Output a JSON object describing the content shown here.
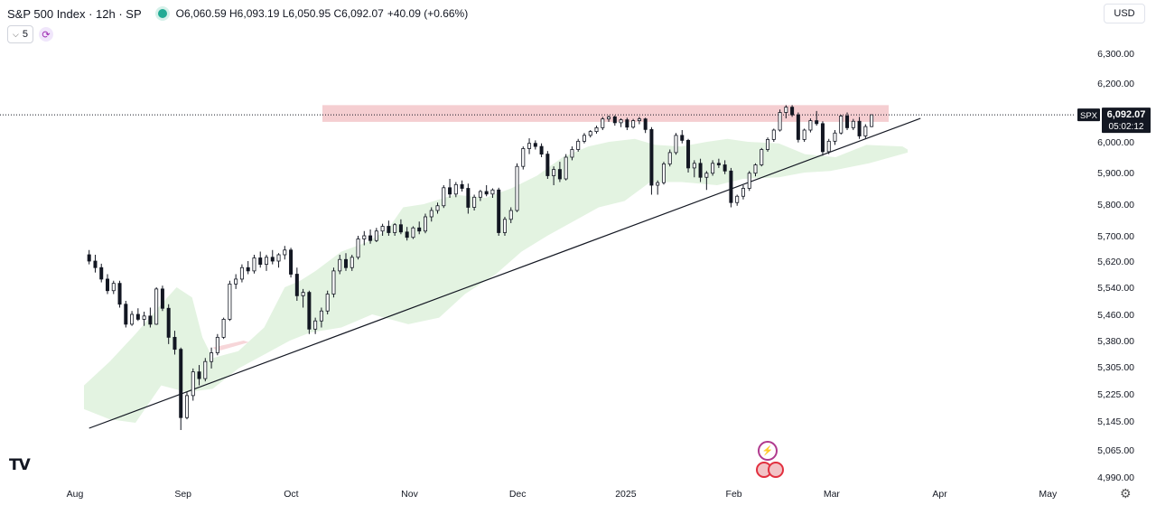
{
  "header": {
    "symbol_title": "S&P 500 Index · 12h · SP",
    "ohlc": "O6,060.59 H6,093.19 L6,050.95 C6,092.07",
    "change": "+40.09 (+0.66%)",
    "interval_value": "5",
    "currency": "USD"
  },
  "price_tag": {
    "ticker": "SPX",
    "price": "6,092.07",
    "countdown": "05:02:12"
  },
  "colors": {
    "up": "#131722",
    "down": "#131722",
    "cloud": "#e3f3e1",
    "resistance": "#f3c5c9",
    "trendline": "#131722",
    "last_bg": "#131722"
  },
  "chart_data": {
    "type": "candlestick",
    "y_axis": {
      "ticks": [
        {
          "v": 6300,
          "label": "6,300.00"
        },
        {
          "v": 6200,
          "label": "6,200.00"
        },
        {
          "v": 6000,
          "label": "6,000.00"
        },
        {
          "v": 5900,
          "label": "5,900.00"
        },
        {
          "v": 5800,
          "label": "5,800.00"
        },
        {
          "v": 5700,
          "label": "5,700.00"
        },
        {
          "v": 5620,
          "label": "5,620.00"
        },
        {
          "v": 5540,
          "label": "5,540.00"
        },
        {
          "v": 5460,
          "label": "5,460.00"
        },
        {
          "v": 5380,
          "label": "5,380.00"
        },
        {
          "v": 5305,
          "label": "5,305.00"
        },
        {
          "v": 5225,
          "label": "5,225.00"
        },
        {
          "v": 5145,
          "label": "5,145.00"
        },
        {
          "v": 5065,
          "label": "5,065.00"
        },
        {
          "v": 4990,
          "label": "4,990.00"
        }
      ]
    },
    "x_axis": {
      "ticks": [
        {
          "i": 0,
          "label": "Aug"
        },
        {
          "i": 42,
          "label": "Sep"
        },
        {
          "i": 84,
          "label": "Oct"
        },
        {
          "i": 130,
          "label": "Nov"
        },
        {
          "i": 172,
          "label": "Dec"
        },
        {
          "i": 214,
          "label": "2025"
        },
        {
          "i": 256,
          "label": "Feb"
        },
        {
          "i": 294,
          "label": "Mar"
        },
        {
          "i": 336,
          "label": "Apr"
        },
        {
          "i": 378,
          "label": "May"
        }
      ]
    },
    "last_price": 6092.07,
    "resistance_zone": {
      "from": 6068,
      "to": 6125
    },
    "trendline": {
      "from": [
        2,
        5125
      ],
      "to": [
        325,
        6080
      ]
    },
    "ohlc_note": "approximate per-bar estimates, 12h bars",
    "candles": [
      [
        5640,
        5655,
        5610,
        5620
      ],
      [
        5620,
        5640,
        5585,
        5600
      ],
      [
        5600,
        5612,
        5555,
        5565
      ],
      [
        5565,
        5580,
        5520,
        5530
      ],
      [
        5530,
        5560,
        5520,
        5552
      ],
      [
        5552,
        5560,
        5480,
        5490
      ],
      [
        5490,
        5500,
        5420,
        5430
      ],
      [
        5430,
        5470,
        5425,
        5460
      ],
      [
        5460,
        5478,
        5440,
        5445
      ],
      [
        5445,
        5468,
        5425,
        5455
      ],
      [
        5455,
        5480,
        5420,
        5430
      ],
      [
        5430,
        5540,
        5428,
        5535
      ],
      [
        5535,
        5545,
        5470,
        5478
      ],
      [
        5478,
        5490,
        5370,
        5390
      ],
      [
        5390,
        5410,
        5340,
        5355
      ],
      [
        5355,
        5360,
        5120,
        5155
      ],
      [
        5155,
        5230,
        5150,
        5220
      ],
      [
        5220,
        5300,
        5205,
        5290
      ],
      [
        5290,
        5310,
        5250,
        5270
      ],
      [
        5270,
        5330,
        5262,
        5320
      ],
      [
        5320,
        5360,
        5300,
        5345
      ],
      [
        5345,
        5400,
        5338,
        5390
      ],
      [
        5390,
        5450,
        5385,
        5445
      ],
      [
        5445,
        5560,
        5440,
        5550
      ],
      [
        5550,
        5580,
        5535,
        5565
      ],
      [
        5565,
        5610,
        5555,
        5600
      ],
      [
        5600,
        5620,
        5580,
        5590
      ],
      [
        5590,
        5640,
        5582,
        5630
      ],
      [
        5630,
        5650,
        5600,
        5610
      ],
      [
        5610,
        5640,
        5590,
        5632
      ],
      [
        5632,
        5655,
        5610,
        5620
      ],
      [
        5620,
        5645,
        5600,
        5640
      ],
      [
        5640,
        5668,
        5625,
        5655
      ],
      [
        5655,
        5662,
        5570,
        5580
      ],
      [
        5580,
        5600,
        5500,
        5515
      ],
      [
        5515,
        5535,
        5480,
        5525
      ],
      [
        5525,
        5530,
        5400,
        5415
      ],
      [
        5415,
        5450,
        5400,
        5440
      ],
      [
        5440,
        5480,
        5420,
        5470
      ],
      [
        5470,
        5530,
        5460,
        5520
      ],
      [
        5520,
        5600,
        5510,
        5590
      ],
      [
        5590,
        5640,
        5580,
        5625
      ],
      [
        5625,
        5645,
        5590,
        5600
      ],
      [
        5600,
        5640,
        5590,
        5632
      ],
      [
        5632,
        5700,
        5625,
        5690
      ],
      [
        5690,
        5715,
        5670,
        5700
      ],
      [
        5700,
        5720,
        5675,
        5685
      ],
      [
        5685,
        5725,
        5680,
        5715
      ],
      [
        5715,
        5738,
        5700,
        5730
      ],
      [
        5730,
        5748,
        5700,
        5710
      ],
      [
        5710,
        5740,
        5700,
        5735
      ],
      [
        5735,
        5752,
        5705,
        5712
      ],
      [
        5712,
        5728,
        5685,
        5695
      ],
      [
        5695,
        5730,
        5690,
        5725
      ],
      [
        5725,
        5745,
        5705,
        5715
      ],
      [
        5715,
        5770,
        5708,
        5760
      ],
      [
        5760,
        5790,
        5745,
        5780
      ],
      [
        5780,
        5805,
        5770,
        5795
      ],
      [
        5795,
        5860,
        5788,
        5852
      ],
      [
        5852,
        5880,
        5820,
        5832
      ],
      [
        5832,
        5870,
        5822,
        5862
      ],
      [
        5862,
        5875,
        5840,
        5850
      ],
      [
        5850,
        5865,
        5770,
        5790
      ],
      [
        5790,
        5830,
        5780,
        5822
      ],
      [
        5822,
        5845,
        5810,
        5840
      ],
      [
        5840,
        5860,
        5825,
        5832
      ],
      [
        5832,
        5850,
        5820,
        5845
      ],
      [
        5845,
        5852,
        5700,
        5710
      ],
      [
        5710,
        5760,
        5700,
        5752
      ],
      [
        5752,
        5790,
        5740,
        5780
      ],
      [
        5780,
        5930,
        5775,
        5920
      ],
      [
        5920,
        5985,
        5910,
        5978
      ],
      [
        5978,
        6012,
        5960,
        5995
      ],
      [
        5995,
        6005,
        5975,
        5985
      ],
      [
        5985,
        5995,
        5950,
        5960
      ],
      [
        5960,
        5970,
        5880,
        5890
      ],
      [
        5890,
        5920,
        5860,
        5910
      ],
      [
        5910,
        5935,
        5870,
        5880
      ],
      [
        5880,
        5960,
        5875,
        5950
      ],
      [
        5950,
        5985,
        5940,
        5975
      ],
      [
        5975,
        6010,
        5968,
        6002
      ],
      [
        6002,
        6030,
        5995,
        6022
      ],
      [
        6022,
        6040,
        6015,
        6035
      ],
      [
        6035,
        6055,
        6028,
        6048
      ],
      [
        6048,
        6085,
        6040,
        6078
      ],
      [
        6078,
        6090,
        6068,
        6085
      ],
      [
        6085,
        6090,
        6055,
        6065
      ],
      [
        6065,
        6080,
        6050,
        6075
      ],
      [
        6075,
        6082,
        6040,
        6050
      ],
      [
        6050,
        6078,
        6045,
        6072
      ],
      [
        6072,
        6085,
        6060,
        6078
      ],
      [
        6078,
        6082,
        6030,
        6042
      ],
      [
        6042,
        6050,
        5830,
        5860
      ],
      [
        5860,
        5875,
        5830,
        5868
      ],
      [
        5868,
        5935,
        5862,
        5928
      ],
      [
        5928,
        5975,
        5920,
        5965
      ],
      [
        5965,
        6030,
        5958,
        6022
      ],
      [
        6022,
        6040,
        5995,
        6005
      ],
      [
        6005,
        6010,
        5900,
        5915
      ],
      [
        5915,
        5940,
        5885,
        5930
      ],
      [
        5930,
        5945,
        5870,
        5885
      ],
      [
        5885,
        5905,
        5845,
        5898
      ],
      [
        5898,
        5940,
        5890,
        5930
      ],
      [
        5930,
        5945,
        5915,
        5925
      ],
      [
        5925,
        5940,
        5895,
        5905
      ],
      [
        5905,
        5915,
        5790,
        5805
      ],
      [
        5805,
        5830,
        5795,
        5825
      ],
      [
        5825,
        5860,
        5815,
        5850
      ],
      [
        5850,
        5905,
        5842,
        5898
      ],
      [
        5898,
        5930,
        5888,
        5925
      ],
      [
        5925,
        5980,
        5920,
        5975
      ],
      [
        5975,
        6015,
        5968,
        6008
      ],
      [
        6008,
        6045,
        6000,
        6040
      ],
      [
        6040,
        6110,
        6035,
        6100
      ],
      [
        6100,
        6125,
        6080,
        6118
      ],
      [
        6118,
        6125,
        6085,
        6092
      ],
      [
        6092,
        6100,
        5998,
        6008
      ],
      [
        6008,
        6045,
        6000,
        6040
      ],
      [
        6040,
        6080,
        6032,
        6072
      ],
      [
        6072,
        6105,
        6055,
        6062
      ],
      [
        6062,
        6070,
        5955,
        5968
      ],
      [
        5968,
        6010,
        5960,
        6002
      ],
      [
        6002,
        6040,
        5990,
        6030
      ],
      [
        6030,
        6092,
        6025,
        6088
      ],
      [
        6088,
        6100,
        6040,
        6048
      ],
      [
        6048,
        6078,
        6040,
        6070
      ],
      [
        6070,
        6085,
        6010,
        6020
      ],
      [
        6020,
        6060,
        6012,
        6052
      ],
      [
        6052,
        6093,
        6050,
        6092
      ]
    ],
    "cloud_upper": [
      [
        0,
        5250
      ],
      [
        10,
        5320
      ],
      [
        20,
        5400
      ],
      [
        30,
        5490
      ],
      [
        36,
        5540
      ],
      [
        42,
        5510
      ],
      [
        46,
        5390
      ],
      [
        50,
        5330
      ],
      [
        60,
        5350
      ],
      [
        70,
        5420
      ],
      [
        78,
        5540
      ],
      [
        84,
        5560
      ],
      [
        90,
        5590
      ],
      [
        100,
        5650
      ],
      [
        110,
        5680
      ],
      [
        118,
        5720
      ],
      [
        124,
        5790
      ],
      [
        132,
        5800
      ],
      [
        144,
        5830
      ],
      [
        156,
        5820
      ],
      [
        166,
        5850
      ],
      [
        176,
        5890
      ],
      [
        186,
        5950
      ],
      [
        196,
        5985
      ],
      [
        204,
        6000
      ],
      [
        214,
        6010
      ],
      [
        222,
        5990
      ],
      [
        232,
        5985
      ],
      [
        242,
        6000
      ],
      [
        250,
        6010
      ],
      [
        258,
        6000
      ],
      [
        270,
        5995
      ],
      [
        280,
        5960
      ],
      [
        292,
        5950
      ],
      [
        304,
        5990
      ],
      [
        318,
        5985
      ],
      [
        320,
        5975
      ]
    ],
    "cloud_lower": [
      [
        320,
        5965
      ],
      [
        305,
        5930
      ],
      [
        290,
        5905
      ],
      [
        280,
        5900
      ],
      [
        270,
        5885
      ],
      [
        256,
        5880
      ],
      [
        246,
        5860
      ],
      [
        232,
        5870
      ],
      [
        220,
        5870
      ],
      [
        210,
        5810
      ],
      [
        200,
        5790
      ],
      [
        190,
        5745
      ],
      [
        180,
        5700
      ],
      [
        170,
        5650
      ],
      [
        160,
        5580
      ],
      [
        148,
        5520
      ],
      [
        138,
        5450
      ],
      [
        126,
        5430
      ],
      [
        112,
        5460
      ],
      [
        100,
        5420
      ],
      [
        88,
        5405
      ],
      [
        80,
        5380
      ],
      [
        70,
        5340
      ],
      [
        60,
        5300
      ],
      [
        50,
        5240
      ],
      [
        40,
        5230
      ],
      [
        30,
        5250
      ],
      [
        20,
        5140
      ],
      [
        10,
        5150
      ],
      [
        0,
        5180
      ]
    ],
    "red_cloud": [
      [
        50,
        5360
      ],
      [
        62,
        5380
      ],
      [
        64,
        5375
      ],
      [
        52,
        5350
      ]
    ]
  }
}
